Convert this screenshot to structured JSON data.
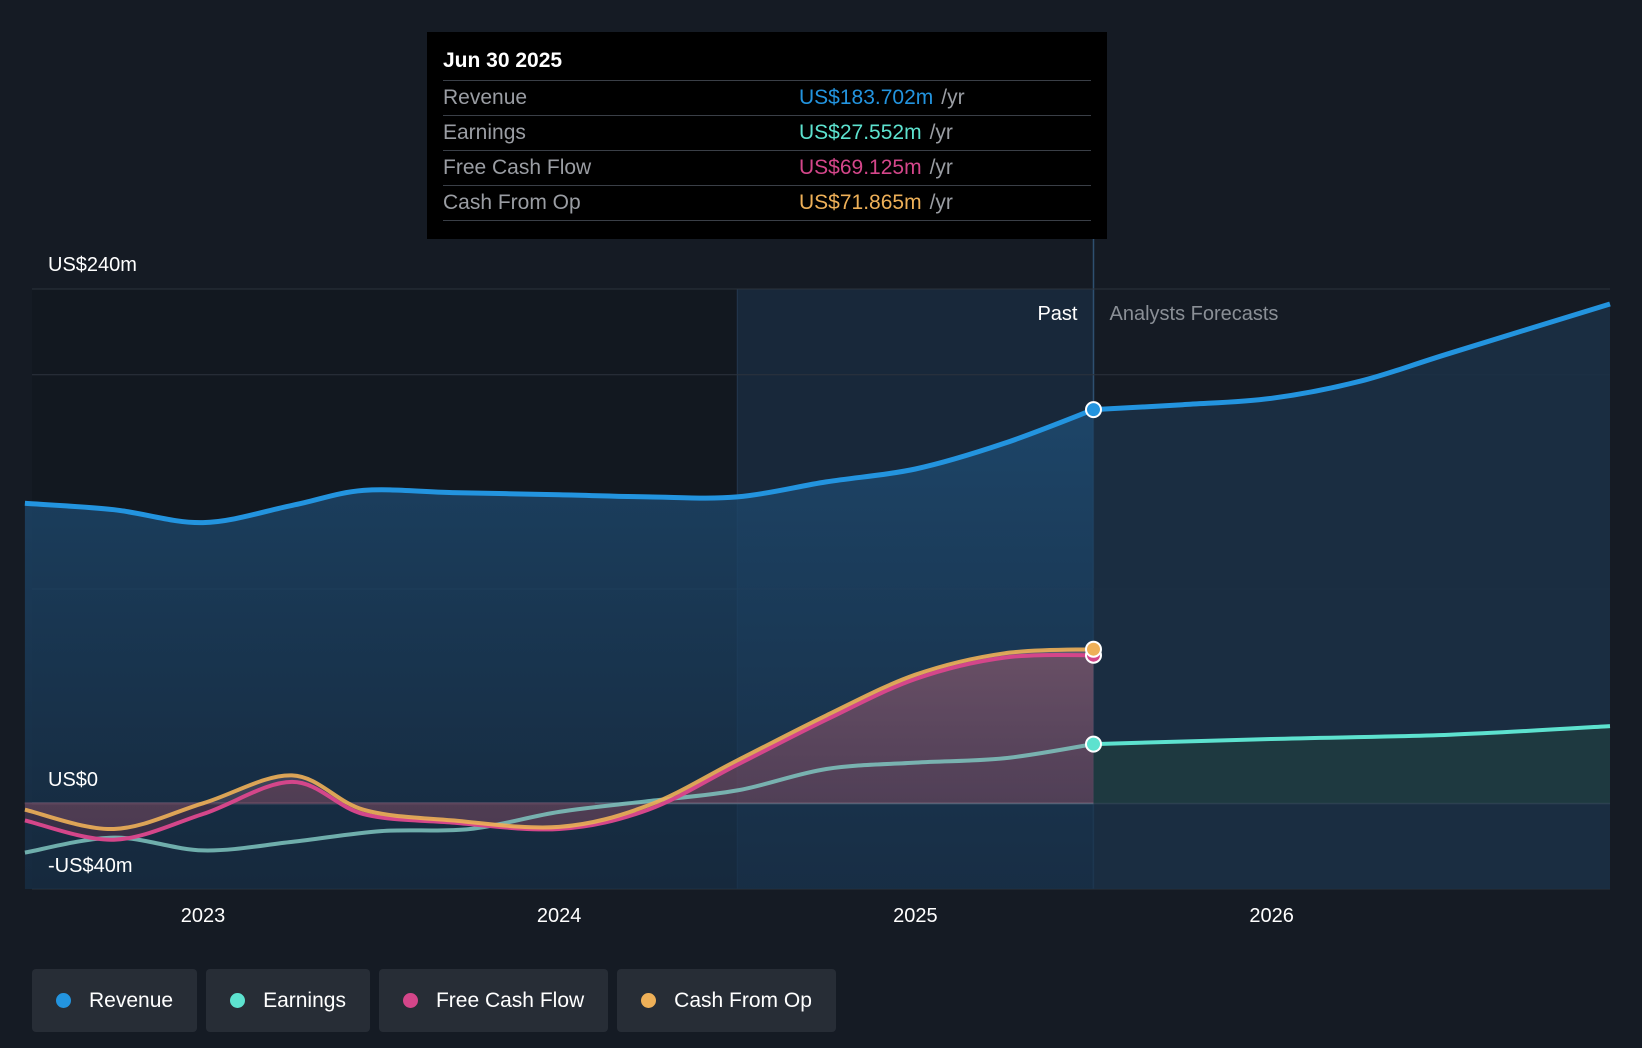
{
  "tooltip": {
    "date": "Jun 30 2025",
    "unit": "/yr",
    "rows": [
      {
        "label": "Revenue",
        "value": "US$183.702m",
        "color": "#2394df"
      },
      {
        "label": "Earnings",
        "value": "US$27.552m",
        "color": "#5de2cf"
      },
      {
        "label": "Free Cash Flow",
        "value": "US$69.125m",
        "color": "#d4468a"
      },
      {
        "label": "Cash From Op",
        "value": "US$71.865m",
        "color": "#eeb058"
      }
    ]
  },
  "legend": [
    {
      "label": "Revenue",
      "color": "#2394df"
    },
    {
      "label": "Earnings",
      "color": "#5de2cf"
    },
    {
      "label": "Free Cash Flow",
      "color": "#d4468a"
    },
    {
      "label": "Cash From Op",
      "color": "#eeb058"
    }
  ],
  "chart_data": {
    "type": "line",
    "y_tick_labels": [
      "US$240m",
      "US$0",
      "-US$40m"
    ],
    "x_tick_labels": [
      "2023",
      "2024",
      "2025",
      "2026"
    ],
    "ylim": [
      -40,
      240
    ],
    "xlim": [
      2022.52,
      2026.95
    ],
    "past_label": "Past",
    "forecast_label": "Analysts Forecasts",
    "forecast_start": 2025.5,
    "highlight_start": 2024.5,
    "grid": true,
    "legend_position": "bottom-left",
    "series": [
      {
        "name": "Revenue",
        "color": "#2394df",
        "past": [
          [
            2022.5,
            140
          ],
          [
            2022.75,
            137
          ],
          [
            2023.0,
            131
          ],
          [
            2023.25,
            139
          ],
          [
            2023.45,
            146
          ],
          [
            2023.7,
            145
          ],
          [
            2024.0,
            144
          ],
          [
            2024.25,
            143
          ],
          [
            2024.5,
            143
          ],
          [
            2024.75,
            150
          ],
          [
            2025.0,
            156
          ],
          [
            2025.25,
            168
          ],
          [
            2025.5,
            183.7
          ]
        ],
        "forecast": [
          [
            2025.5,
            183.7
          ],
          [
            2025.75,
            186
          ],
          [
            2026.0,
            189
          ],
          [
            2026.25,
            197
          ],
          [
            2026.5,
            210
          ],
          [
            2026.95,
            233
          ]
        ]
      },
      {
        "name": "Earnings",
        "color": "#5de2cf",
        "past": [
          [
            2022.5,
            -23
          ],
          [
            2022.75,
            -16
          ],
          [
            2023.0,
            -22
          ],
          [
            2023.25,
            -18
          ],
          [
            2023.5,
            -13
          ],
          [
            2023.75,
            -12
          ],
          [
            2024.0,
            -4
          ],
          [
            2024.25,
            1
          ],
          [
            2024.5,
            6
          ],
          [
            2024.75,
            16
          ],
          [
            2025.0,
            19
          ],
          [
            2025.25,
            21
          ],
          [
            2025.5,
            27.6
          ]
        ],
        "forecast": [
          [
            2025.5,
            27.6
          ],
          [
            2026.0,
            30
          ],
          [
            2026.5,
            32
          ],
          [
            2026.95,
            36
          ]
        ]
      },
      {
        "name": "Free Cash Flow",
        "color": "#d4468a",
        "past": [
          [
            2022.5,
            -8
          ],
          [
            2022.75,
            -17
          ],
          [
            2023.0,
            -5
          ],
          [
            2023.25,
            10
          ],
          [
            2023.45,
            -5
          ],
          [
            2023.7,
            -9
          ],
          [
            2024.0,
            -12
          ],
          [
            2024.25,
            -3
          ],
          [
            2024.5,
            18
          ],
          [
            2024.75,
            39
          ],
          [
            2025.0,
            58
          ],
          [
            2025.25,
            68
          ],
          [
            2025.5,
            69.1
          ]
        ],
        "forecast": []
      },
      {
        "name": "Cash From Op",
        "color": "#eeb058",
        "past": [
          [
            2022.5,
            -3
          ],
          [
            2022.75,
            -12
          ],
          [
            2023.0,
            0
          ],
          [
            2023.25,
            13
          ],
          [
            2023.45,
            -3
          ],
          [
            2023.7,
            -8
          ],
          [
            2024.0,
            -11
          ],
          [
            2024.25,
            -1
          ],
          [
            2024.5,
            20
          ],
          [
            2024.75,
            41
          ],
          [
            2025.0,
            60
          ],
          [
            2025.25,
            70
          ],
          [
            2025.5,
            71.9
          ]
        ],
        "forecast": []
      }
    ]
  }
}
